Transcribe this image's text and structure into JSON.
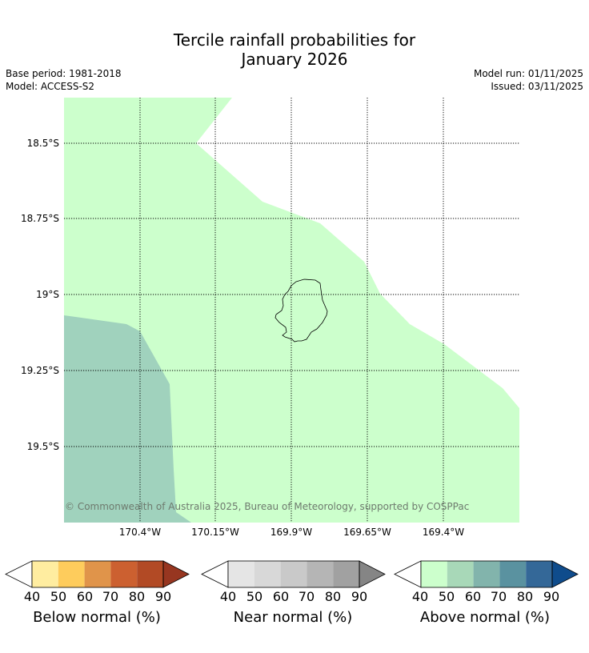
{
  "title_line1": "Tercile rainfall probabilities for",
  "title_line2": "January 2026",
  "base_period": "Base period: 1981-2018",
  "model": "Model: ACCESS-S2",
  "model_run": "Model run: 01/11/2025",
  "issued": "Issued: 03/11/2025",
  "latitude_labels": [
    "18.5°S",
    "18.75°S",
    "19°S",
    "19.25°S",
    "19.5°S"
  ],
  "longitude_labels": [
    "170.4°W",
    "170.15°W",
    "169.9°W",
    "169.65°W",
    "169.4°W"
  ],
  "copyright": "© Commonwealth of Australia 2025, Bureau of Meteorology, supported by COSPPac",
  "legends": [
    {
      "name": "Below normal (%)",
      "ticks": [
        "40",
        "50",
        "60",
        "70",
        "80",
        "90"
      ],
      "colors": [
        "#ffeda0",
        "#fecc5c",
        "#e0944a",
        "#cc6030",
        "#b24a25",
        "#973620"
      ]
    },
    {
      "name": "Near normal (%)",
      "ticks": [
        "40",
        "50",
        "60",
        "70",
        "80",
        "90"
      ],
      "colors": [
        "#e5e5e5",
        "#d8d8d8",
        "#c9c9c9",
        "#b5b5b5",
        "#a1a1a1",
        "#858585"
      ]
    },
    {
      "name": "Above normal (%)",
      "ticks": [
        "40",
        "50",
        "60",
        "70",
        "80",
        "90"
      ],
      "colors": [
        "#ccffcc",
        "#a8d8b8",
        "#82b4ac",
        "#5a92a0",
        "#346898",
        "#0f4c8c"
      ]
    }
  ],
  "colors": {
    "above_40_50": "#ccffcc",
    "above_50_60": "#a0d2bd"
  }
}
